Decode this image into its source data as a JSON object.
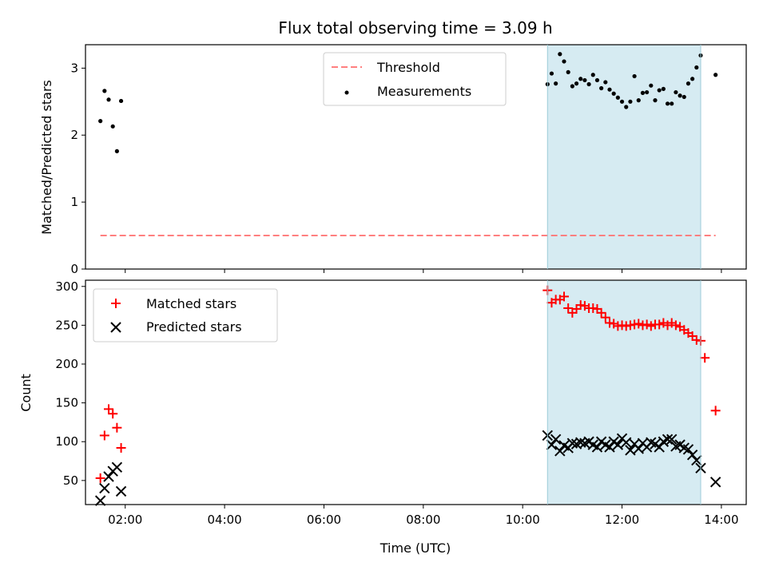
{
  "chart_data": [
    {
      "type": "scatter",
      "title": "Flux total observing time = 3.09 h",
      "xlabel": "",
      "ylabel": "Matched/Predicted stars",
      "xlim": [
        "01:12",
        "14:30"
      ],
      "ylim": [
        0,
        3.35
      ],
      "yticks": [
        0,
        1,
        2,
        3
      ],
      "grid": false,
      "legend_position": "top-center",
      "highlight_span": {
        "from": "10:30",
        "to": "13:35",
        "color": "#add8e6"
      },
      "series": [
        {
          "name": "Threshold",
          "style": "dashed-line",
          "color": "#ff7f7f",
          "x": [
            "01:30",
            "13:53"
          ],
          "y": [
            0.5,
            0.5
          ]
        },
        {
          "name": "Measurements",
          "style": "dot",
          "color": "#000000",
          "x": [
            "01:30",
            "01:35",
            "01:40",
            "01:45",
            "01:50",
            "01:55",
            "10:30",
            "10:35",
            "10:40",
            "10:45",
            "10:50",
            "10:55",
            "11:00",
            "11:05",
            "11:10",
            "11:15",
            "11:20",
            "11:25",
            "11:30",
            "11:35",
            "11:40",
            "11:45",
            "11:50",
            "11:55",
            "12:00",
            "12:05",
            "12:10",
            "12:15",
            "12:20",
            "12:25",
            "12:30",
            "12:35",
            "12:40",
            "12:45",
            "12:50",
            "12:55",
            "13:00",
            "13:05",
            "13:10",
            "13:15",
            "13:20",
            "13:25",
            "13:30",
            "13:35",
            "13:53"
          ],
          "y": [
            2.21,
            2.66,
            2.53,
            2.13,
            1.76,
            2.51,
            2.76,
            2.92,
            2.77,
            3.21,
            3.1,
            2.94,
            2.73,
            2.77,
            2.84,
            2.82,
            2.76,
            2.9,
            2.82,
            2.7,
            2.79,
            2.68,
            2.62,
            2.56,
            2.5,
            2.42,
            2.5,
            2.88,
            2.52,
            2.63,
            2.64,
            2.74,
            2.52,
            2.67,
            2.69,
            2.47,
            2.47,
            2.64,
            2.59,
            2.57,
            2.77,
            2.84,
            3.01,
            3.19,
            2.9
          ]
        }
      ]
    },
    {
      "type": "scatter",
      "title": "",
      "xlabel": "Time (UTC)",
      "ylabel": "Count",
      "xlim": [
        "01:12",
        "14:30"
      ],
      "ylim": [
        19,
        308
      ],
      "yticks": [
        50,
        100,
        150,
        200,
        250,
        300
      ],
      "xticks": [
        "02:00",
        "04:00",
        "06:00",
        "08:00",
        "10:00",
        "12:00",
        "14:00"
      ],
      "grid": false,
      "legend_position": "top-left",
      "highlight_span": {
        "from": "10:30",
        "to": "13:35",
        "color": "#add8e6"
      },
      "series": [
        {
          "name": "Matched stars",
          "style": "plus",
          "color": "#ff0000",
          "x": [
            "01:30",
            "01:35",
            "01:40",
            "01:45",
            "01:50",
            "01:55",
            "10:30",
            "10:35",
            "10:40",
            "10:45",
            "10:50",
            "10:55",
            "11:00",
            "11:05",
            "11:10",
            "11:15",
            "11:20",
            "11:25",
            "11:30",
            "11:35",
            "11:40",
            "11:45",
            "11:50",
            "11:55",
            "12:00",
            "12:05",
            "12:10",
            "12:15",
            "12:20",
            "12:25",
            "12:30",
            "12:35",
            "12:40",
            "12:45",
            "12:50",
            "12:55",
            "13:00",
            "13:05",
            "13:10",
            "13:15",
            "13:20",
            "13:25",
            "13:30",
            "13:35",
            "13:40",
            "13:53"
          ],
          "y": [
            53,
            108,
            142,
            136,
            118,
            92,
            295,
            279,
            283,
            283,
            287,
            272,
            266,
            271,
            276,
            275,
            272,
            272,
            271,
            266,
            260,
            253,
            252,
            249,
            250,
            249,
            250,
            251,
            252,
            250,
            251,
            249,
            251,
            251,
            253,
            250,
            253,
            250,
            248,
            244,
            240,
            236,
            231,
            230,
            208,
            140
          ]
        },
        {
          "name": "Predicted stars",
          "style": "x",
          "color": "#000000",
          "x": [
            "01:30",
            "01:35",
            "01:40",
            "01:45",
            "01:50",
            "01:55",
            "10:30",
            "10:35",
            "10:40",
            "10:45",
            "10:50",
            "10:55",
            "11:00",
            "11:05",
            "11:10",
            "11:15",
            "11:20",
            "11:25",
            "11:30",
            "11:35",
            "11:40",
            "11:45",
            "11:50",
            "11:55",
            "12:00",
            "12:05",
            "12:10",
            "12:15",
            "12:20",
            "12:25",
            "12:30",
            "12:35",
            "12:40",
            "12:45",
            "12:50",
            "12:55",
            "13:00",
            "13:05",
            "13:10",
            "13:15",
            "13:20",
            "13:25",
            "13:30",
            "13:35",
            "13:53"
          ],
          "y": [
            24,
            40,
            55,
            62,
            67,
            36,
            108,
            96,
            103,
            88,
            95,
            92,
            98,
            97,
            99,
            98,
            100,
            96,
            93,
            100,
            96,
            93,
            100,
            96,
            104,
            99,
            89,
            97,
            91,
            98,
            93,
            99,
            97,
            93,
            100,
            103,
            103,
            94,
            96,
            92,
            90,
            83,
            76,
            66,
            48
          ]
        }
      ]
    }
  ]
}
